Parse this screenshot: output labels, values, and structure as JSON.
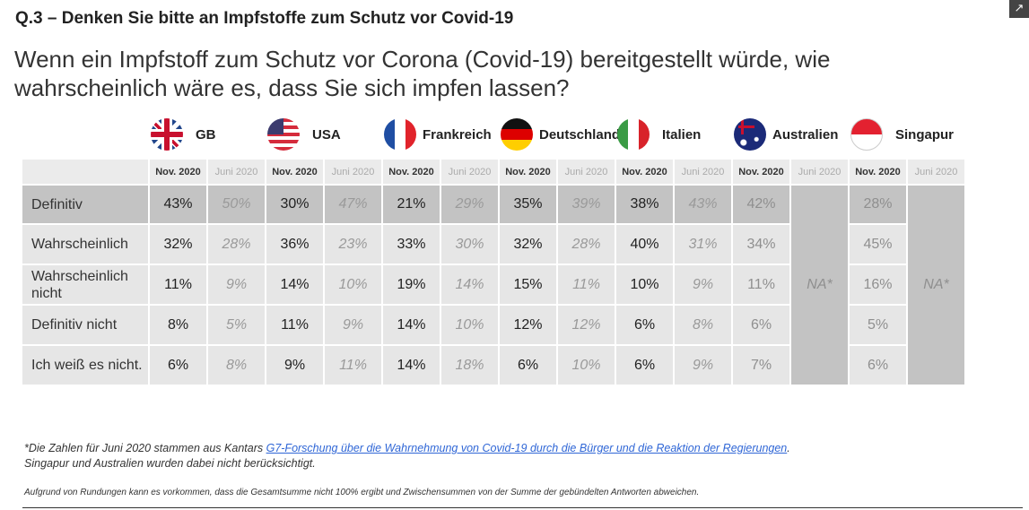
{
  "question": "Q.3 – Denken Sie bitte an Impfstoffe zum Schutz vor Covid-19",
  "subtitle": "Wenn ein Impfstoff zum Schutz vor Corona (Covid-19) bereitgestellt würde, wie wahrscheinlich wäre es, dass Sie sich impfen lassen?",
  "corner_icon": "expand-icon",
  "periods": {
    "nov": "Nov. 2020",
    "jun": "Juni 2020"
  },
  "countries": [
    {
      "name": "GB",
      "flag": "gb"
    },
    {
      "name": "USA",
      "flag": "us"
    },
    {
      "name": "Frankreich",
      "flag": "fr"
    },
    {
      "name": "Deutschland",
      "flag": "de"
    },
    {
      "name": "Italien",
      "flag": "it"
    },
    {
      "name": "Australien",
      "flag": "au"
    },
    {
      "name": "Singapur",
      "flag": "sg"
    }
  ],
  "na_label": "NA*",
  "rows": [
    {
      "label": "Definitiv",
      "values": [
        [
          "43%",
          "50%"
        ],
        [
          "30%",
          "47%"
        ],
        [
          "21%",
          "29%"
        ],
        [
          "35%",
          "39%"
        ],
        [
          "38%",
          "43%"
        ],
        [
          "42%",
          null
        ],
        [
          "28%",
          null
        ]
      ]
    },
    {
      "label": "Wahrscheinlich",
      "values": [
        [
          "32%",
          "28%"
        ],
        [
          "36%",
          "23%"
        ],
        [
          "33%",
          "30%"
        ],
        [
          "32%",
          "28%"
        ],
        [
          "40%",
          "31%"
        ],
        [
          "34%",
          null
        ],
        [
          "45%",
          null
        ]
      ]
    },
    {
      "label": "Wahrscheinlich nicht",
      "values": [
        [
          "11%",
          "9%"
        ],
        [
          "14%",
          "10%"
        ],
        [
          "19%",
          "14%"
        ],
        [
          "15%",
          "11%"
        ],
        [
          "10%",
          "9%"
        ],
        [
          "11%",
          null
        ],
        [
          "16%",
          null
        ]
      ]
    },
    {
      "label": "Definitiv nicht",
      "values": [
        [
          "8%",
          "5%"
        ],
        [
          "11%",
          "9%"
        ],
        [
          "14%",
          "10%"
        ],
        [
          "12%",
          "12%"
        ],
        [
          "6%",
          "8%"
        ],
        [
          "6%",
          null
        ],
        [
          "5%",
          null
        ]
      ]
    },
    {
      "label": "Ich weiß es nicht.",
      "values": [
        [
          "6%",
          "8%"
        ],
        [
          "9%",
          "11%"
        ],
        [
          "14%",
          "18%"
        ],
        [
          "6%",
          "10%"
        ],
        [
          "6%",
          "9%"
        ],
        [
          "7%",
          null
        ],
        [
          "6%",
          null
        ]
      ]
    }
  ],
  "footnote": {
    "prefix": "*Die Zahlen für Juni 2020 stammen aus Kantars ",
    "link": "G7-Forschung über die Wahrnehmung von Covid-19 durch die Bürger und die Reaktion der Regierungen",
    "suffix": ".",
    "line2": "Singapur und Australien wurden  dabei nicht berücksichtigt."
  },
  "rounding_note": "Aufgrund von Rundungen kann es vorkommen, dass die Gesamtsumme nicht 100% ergibt und Zwischensummen von der Summe der gebündelten Antworten abweichen."
}
